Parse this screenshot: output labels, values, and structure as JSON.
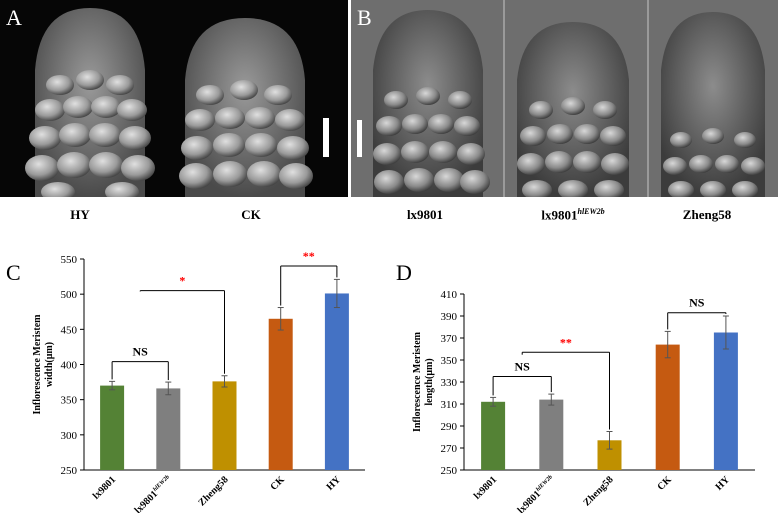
{
  "panelA": {
    "letter": "A",
    "captions": [
      "HY",
      "CK"
    ]
  },
  "panelB": {
    "letter": "B",
    "captions": [
      {
        "base": "lx9801",
        "sup": ""
      },
      {
        "base": "lx9801",
        "sup": "hlEW2b"
      },
      {
        "base": "Zheng58",
        "sup": ""
      }
    ]
  },
  "chart_data": [
    {
      "letter": "C",
      "type": "bar",
      "ylabel_line1": "Inflorescence Meristem",
      "ylabel_line2": "width(μm)",
      "categories": [
        "lx9801",
        "lx9801",
        "Zheng58",
        "CK",
        "HY"
      ],
      "category_sups": [
        "",
        "hlEW2b",
        "",
        "",
        ""
      ],
      "values": [
        370,
        366,
        376,
        465,
        501
      ],
      "errors": [
        6,
        9,
        8,
        16,
        20
      ],
      "colors": [
        "#548235",
        "#7f7f7f",
        "#bf9000",
        "#c55a11",
        "#4472c4"
      ],
      "ylim": [
        250,
        550
      ],
      "yticks": [
        250,
        300,
        350,
        400,
        450,
        500,
        550
      ],
      "significance": [
        {
          "from": 0,
          "to": 1,
          "label": "NS",
          "color": "#000000",
          "y": 404
        },
        {
          "from": 0.5,
          "to": 2,
          "label": "*",
          "color": "#ff0000",
          "y": 505
        },
        {
          "from": 3,
          "to": 4,
          "label": "**",
          "color": "#ff0000",
          "y": 540
        }
      ]
    },
    {
      "letter": "D",
      "type": "bar",
      "ylabel_line1": "Inflorescence Meristem",
      "ylabel_line2": "length(μm)",
      "categories": [
        "lx9801",
        "lx9801",
        "Zheng58",
        "CK",
        "HY"
      ],
      "category_sups": [
        "",
        "hlEW2b",
        "",
        "",
        ""
      ],
      "values": [
        312,
        314,
        277,
        364,
        375
      ],
      "errors": [
        4,
        5,
        8,
        12,
        15
      ],
      "colors": [
        "#548235",
        "#7f7f7f",
        "#bf9000",
        "#c55a11",
        "#4472c4"
      ],
      "ylim": [
        250,
        410
      ],
      "yticks": [
        250,
        270,
        290,
        310,
        330,
        350,
        370,
        390,
        410
      ],
      "significance": [
        {
          "from": 0,
          "to": 1,
          "label": "NS",
          "color": "#000000",
          "y": 335
        },
        {
          "from": 0.5,
          "to": 2,
          "label": "**",
          "color": "#ff0000",
          "y": 357
        },
        {
          "from": 3,
          "to": 4,
          "label": "NS",
          "color": "#000000",
          "y": 393
        }
      ]
    }
  ]
}
